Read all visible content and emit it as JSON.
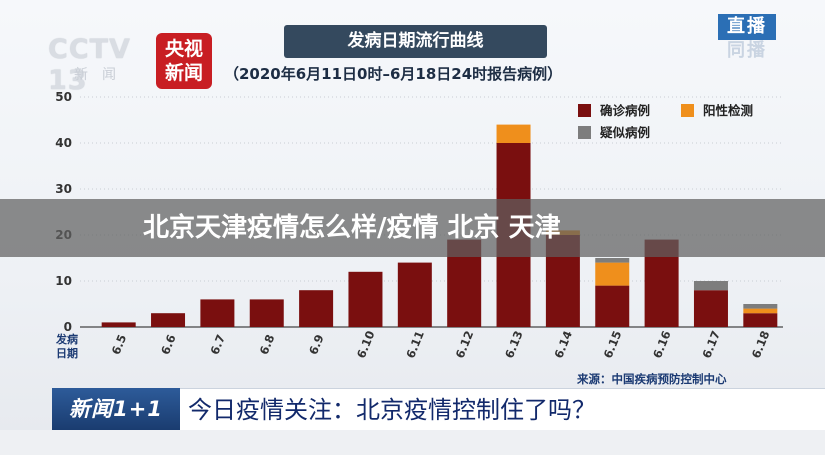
{
  "header": {
    "channel_logo": "CCTV 13",
    "channel_sub": "新闻",
    "brand_line1": "央视",
    "brand_line2": "新闻",
    "live_top": "直播",
    "live_bottom": "同播"
  },
  "overlay": {
    "text": "北京天津疫情怎么样/疫情 北京 天津"
  },
  "ticker": {
    "logo": "新闻1+1",
    "message": "今日疫情关注：北京疫情控制住了吗？"
  },
  "colors": {
    "confirmed": "#7a0f0f",
    "positive": "#ef8f1c",
    "suspected": "#7d7d7d"
  },
  "chart_data": {
    "type": "bar",
    "stacked": true,
    "title": "发病日期流行曲线",
    "subtitle": "（2020年6月11日0时–6月18日24时报告病例）",
    "xlabel": "发病\n日期",
    "ylabel": "",
    "ylim": [
      0,
      50
    ],
    "yticks": [
      0,
      10,
      20,
      30,
      40,
      50
    ],
    "grid": true,
    "legend_position": "top-right",
    "categories": [
      "6.5",
      "6.6",
      "6.7",
      "6.8",
      "6.9",
      "6.10",
      "6.11",
      "6.12",
      "6.13",
      "6.14",
      "6.15",
      "6.16",
      "6.17",
      "6.18"
    ],
    "series": [
      {
        "name": "确诊病例",
        "color": "#7a0f0f",
        "values": [
          1,
          3,
          6,
          6,
          8,
          12,
          14,
          19,
          40,
          20,
          9,
          19,
          8,
          3
        ]
      },
      {
        "name": "阳性检测",
        "color": "#ef8f1c",
        "values": [
          0,
          0,
          0,
          0,
          0,
          0,
          0,
          0,
          4,
          1,
          5,
          0,
          0,
          1
        ]
      },
      {
        "name": "疑似病例",
        "color": "#7d7d7d",
        "values": [
          0,
          0,
          0,
          0,
          0,
          0,
          0,
          0,
          0,
          0,
          1,
          0,
          2,
          1
        ]
      }
    ],
    "source": "来源：中国疾病预防控制中心"
  }
}
